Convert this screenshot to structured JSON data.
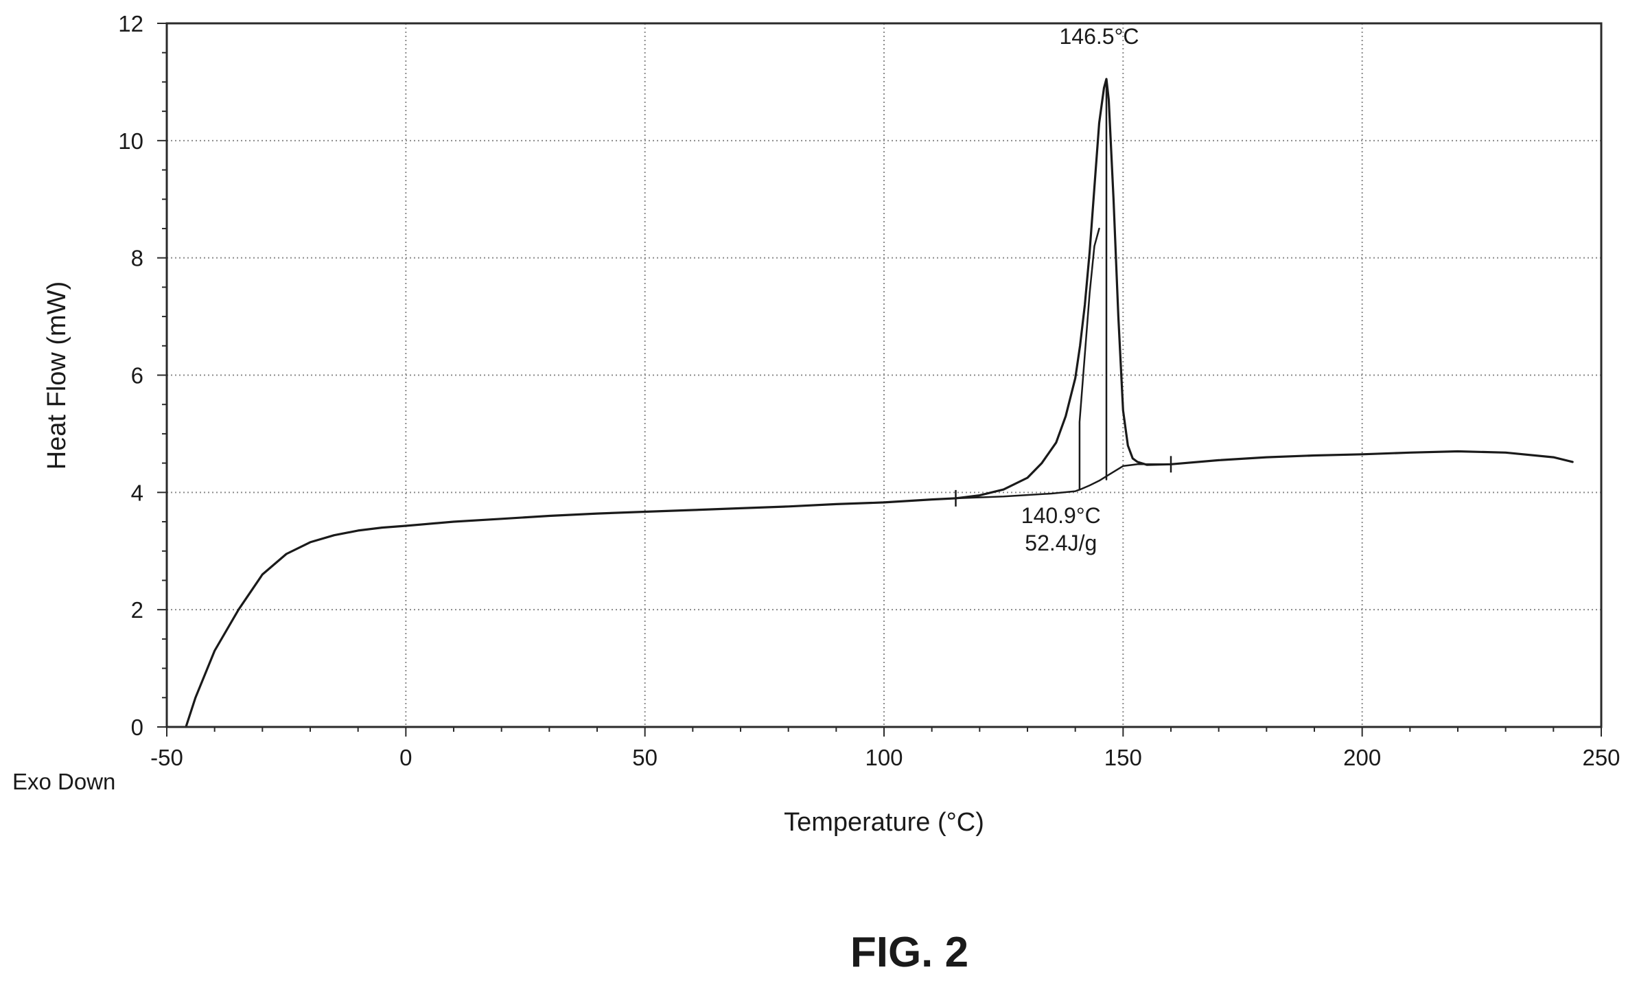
{
  "chart_data": {
    "type": "line",
    "xlabel": "Temperature (°C)",
    "ylabel": "Heat Flow (mW)",
    "corner_label": "Exo Down",
    "xlim": [
      -50,
      250
    ],
    "ylim": [
      0,
      12
    ],
    "xticks": [
      -50,
      0,
      50,
      100,
      150,
      200,
      250
    ],
    "xtick_labels": [
      "-50",
      "0",
      "50",
      "100",
      "150",
      "200",
      "250"
    ],
    "yticks": [
      0,
      2,
      4,
      6,
      8,
      10,
      12
    ],
    "ytick_labels": [
      "0",
      "2",
      "4",
      "6",
      "8",
      "10",
      "12"
    ],
    "grid": true,
    "series": [
      {
        "x": [
          -46,
          -44,
          -40,
          -35,
          -30,
          -25,
          -20,
          -15,
          -10,
          -5,
          0,
          10,
          20,
          30,
          40,
          50,
          60,
          70,
          80,
          90,
          100,
          110,
          115,
          120,
          125,
          130,
          133,
          136,
          138,
          140,
          141,
          142,
          143,
          144,
          145,
          146,
          146.5,
          147,
          148,
          149,
          150,
          151,
          152,
          153,
          155,
          160,
          170,
          180,
          190,
          200,
          210,
          220,
          230,
          240,
          244
        ],
        "y": [
          0,
          0.5,
          1.3,
          2.0,
          2.6,
          2.95,
          3.15,
          3.27,
          3.35,
          3.4,
          3.43,
          3.5,
          3.55,
          3.6,
          3.64,
          3.67,
          3.7,
          3.73,
          3.76,
          3.8,
          3.83,
          3.88,
          3.9,
          3.95,
          4.05,
          4.25,
          4.5,
          4.85,
          5.3,
          5.95,
          6.5,
          7.2,
          8.1,
          9.2,
          10.3,
          10.9,
          11.05,
          10.7,
          9.0,
          7.0,
          5.4,
          4.8,
          4.58,
          4.52,
          4.47,
          4.48,
          4.55,
          4.6,
          4.63,
          4.65,
          4.68,
          4.7,
          4.68,
          4.6,
          4.52
        ]
      }
    ],
    "baseline": {
      "x": [
        115,
        125,
        135,
        140,
        141,
        143,
        145,
        147,
        150,
        153,
        160
      ],
      "y": [
        3.9,
        3.93,
        3.98,
        4.02,
        4.05,
        4.12,
        4.2,
        4.3,
        4.45,
        4.48,
        4.48
      ]
    },
    "integration_limits_x": [
      115,
      160
    ],
    "onset_line": {
      "x": [
        140.9,
        140.9,
        143,
        144,
        145
      ],
      "y": [
        4.05,
        5.2,
        7.4,
        8.2,
        8.5
      ]
    },
    "peak_drop_line": {
      "x": [
        146.5,
        146.5
      ],
      "y": [
        11.05,
        4.22
      ]
    },
    "annotations": [
      {
        "lines": [
          "146.5°C"
        ],
        "x": 145,
        "y": 11.65
      },
      {
        "lines": [
          "140.9°C",
          "52.4J/g"
        ],
        "x": 137,
        "y": 3.48
      }
    ]
  },
  "caption": "FIG. 2"
}
